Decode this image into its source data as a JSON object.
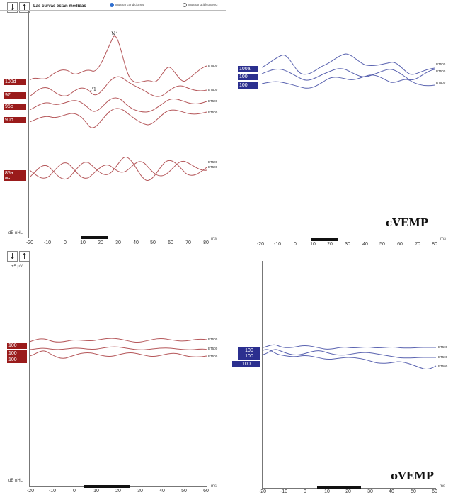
{
  "colors": {
    "red_trace": "#b5575a",
    "blue_trace": "#5a63b0",
    "red_tag": "#9a1b1b",
    "blue_tag": "#2b2f8f",
    "axis": "#777777"
  },
  "toolbar": {
    "down_icon": "arrow-down-icon",
    "up_icon": "arrow-up-icon",
    "title": "Las curvas están medidas",
    "radio_show_conditions": "Mostrar condiciones",
    "radio_show_emg": "Mostrar gráfico EMG"
  },
  "common": {
    "y_unit": "dB nHL",
    "x_unit": "ms",
    "bt_label": "BT500",
    "plus5": "+5 µV"
  },
  "labels": {
    "cvemp": "cVEMP",
    "ovemp": "oVEMP"
  },
  "peaks": {
    "p1": "P1",
    "n1": "N1"
  },
  "panels": {
    "tl": {
      "x_ticks": [
        "-20",
        "-10",
        "0",
        "10",
        "20",
        "30",
        "40",
        "50",
        "60",
        "70",
        "80"
      ],
      "tags": [
        {
          "label": "100d",
          "sub": ""
        },
        {
          "label": "97",
          "sub": ""
        },
        {
          "label": "95c",
          "sub": ""
        },
        {
          "label": "90b",
          "sub": ""
        },
        {
          "label": "85a",
          "sub": "dG"
        }
      ]
    },
    "tr": {
      "x_ticks": [
        "-20",
        "-10",
        "0",
        "10",
        "20",
        "30",
        "40",
        "50",
        "60",
        "70",
        "80"
      ],
      "tags": [
        {
          "label": "100a"
        },
        {
          "label": "100"
        },
        {
          "label": "100"
        }
      ]
    },
    "bl": {
      "x_ticks": [
        "-20",
        "-10",
        "0",
        "10",
        "20",
        "30",
        "40",
        "50",
        "60"
      ],
      "tags": [
        {
          "label": "100"
        },
        {
          "label": "100"
        },
        {
          "label": "100"
        }
      ]
    },
    "br": {
      "x_ticks": [
        "-20",
        "-10",
        "0",
        "10",
        "20",
        "30",
        "40",
        "50",
        "60"
      ],
      "tags": [
        {
          "label": "100"
        },
        {
          "label": "100"
        },
        {
          "label": "100"
        }
      ]
    }
  }
}
